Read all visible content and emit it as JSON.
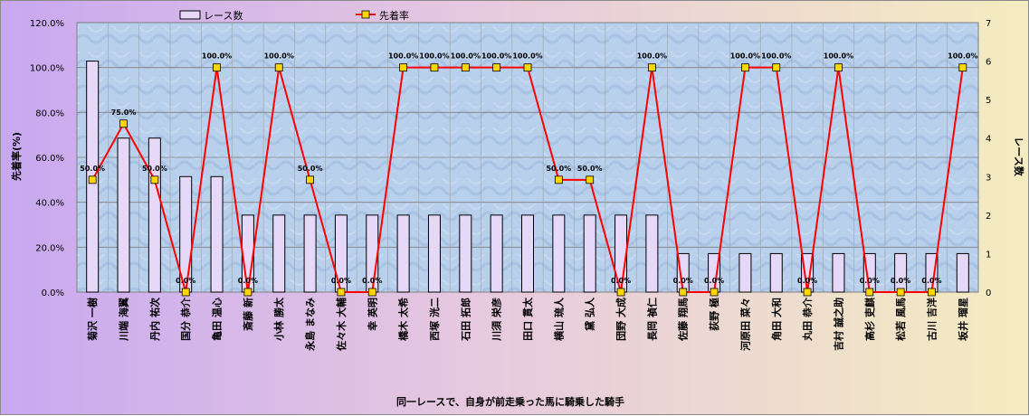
{
  "chart_data": {
    "type": "bar+line",
    "xlabel": "同一レースで、自身が前走乗った馬に騎乗した騎手",
    "ylabel_left": "先着率(%)",
    "ylabel_right": "レース数",
    "left_ticks": [
      "0.0%",
      "20.0%",
      "40.0%",
      "60.0%",
      "80.0%",
      "100.0%",
      "120.0%"
    ],
    "right_ticks": [
      "0",
      "1",
      "2",
      "3",
      "4",
      "5",
      "6",
      "7"
    ],
    "left_range": [
      0,
      120
    ],
    "right_range": [
      0,
      7
    ],
    "categories": [
      "菊沢 一樹",
      "川端 海翼",
      "丹内 祐次",
      "国分 恭介",
      "亀田 温心",
      "斎藤 新",
      "小林 勝太",
      "永島 まなみ",
      "佐々木 大輔",
      "幸 英明",
      "橋木 太希",
      "西塚 洸二",
      "石田 拓郎",
      "川須 栄彦",
      "田口 貫太",
      "横山 琉人",
      "黛 弘人",
      "団野 大成",
      "長岡 禎仁",
      "佐藤 翔馬",
      "荻野 極",
      "河原田 菜々",
      "角田 大和",
      "丸田 恭介",
      "吉村 誠之助",
      "高杉 吏麒",
      "松若 風馬",
      "古川 吉洋",
      "坂井 瑠星"
    ],
    "series": [
      {
        "name": "レース数",
        "type": "bar",
        "axis": "right",
        "values": [
          6,
          4,
          4,
          3,
          3,
          2,
          2,
          2,
          2,
          2,
          2,
          2,
          2,
          2,
          2,
          2,
          2,
          2,
          2,
          1,
          1,
          1,
          1,
          1,
          1,
          1,
          1,
          1,
          1
        ]
      },
      {
        "name": "先着率",
        "type": "line",
        "axis": "left",
        "values": [
          50,
          75,
          50,
          0,
          100,
          0,
          100,
          50,
          0,
          0,
          100,
          100,
          100,
          100,
          100,
          50,
          50,
          0,
          100,
          0,
          0,
          100,
          100,
          0,
          100,
          0,
          0,
          0,
          100
        ]
      }
    ],
    "data_labels": [
      "50.0%",
      "75.0%",
      "50.0%",
      "0.0%",
      "100.0%",
      "0.0%",
      "100.0%",
      "50.0%",
      "0.0%",
      "0.0%",
      "100.0%",
      "100.0%",
      "100.0%",
      "100.0%",
      "100.0%",
      "50.0%",
      "50.0%",
      "0.0%",
      "100.0%",
      "0.0%",
      "0.0%",
      "100.0%",
      "100.0%",
      "0.0%",
      "100.0%",
      "0.0%",
      "0.0%",
      "0.0%",
      "100.0%"
    ],
    "legend_position": "top",
    "colors": {
      "bar_fill": "#e6d8f8",
      "bar_stroke": "#000000",
      "line": "#ff0000",
      "marker": "#ffd700",
      "plot_bg": "#b8d0ec"
    }
  }
}
